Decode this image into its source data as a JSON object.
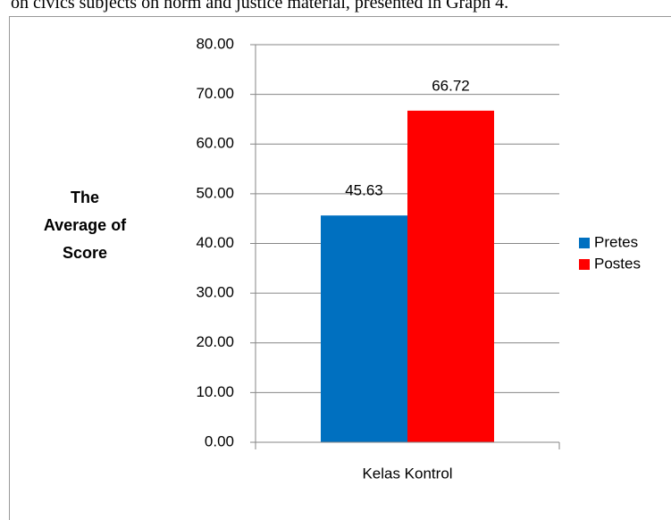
{
  "caption": "on civics subjects on norm and justice material, presented in Graph 4.",
  "chart_data": {
    "type": "bar",
    "ylabel": "The Average of Score",
    "categories": [
      "Kelas Kontrol"
    ],
    "series": [
      {
        "name": "Pretes",
        "color": "#0070c0",
        "values": [
          45.63
        ]
      },
      {
        "name": "Postes",
        "color": "#ff0000",
        "values": [
          66.72
        ]
      }
    ],
    "ylim": [
      0,
      80
    ],
    "yticks": [
      {
        "value": 0,
        "label": "0.00"
      },
      {
        "value": 10,
        "label": "10.00"
      },
      {
        "value": 20,
        "label": "20.00"
      },
      {
        "value": 30,
        "label": "30.00"
      },
      {
        "value": 40,
        "label": "40.00"
      },
      {
        "value": 50,
        "label": "50.00"
      },
      {
        "value": 60,
        "label": "60.00"
      },
      {
        "value": 70,
        "label": "70.00"
      },
      {
        "value": 80,
        "label": "80.00"
      }
    ],
    "grid": true,
    "legend": "right"
  }
}
